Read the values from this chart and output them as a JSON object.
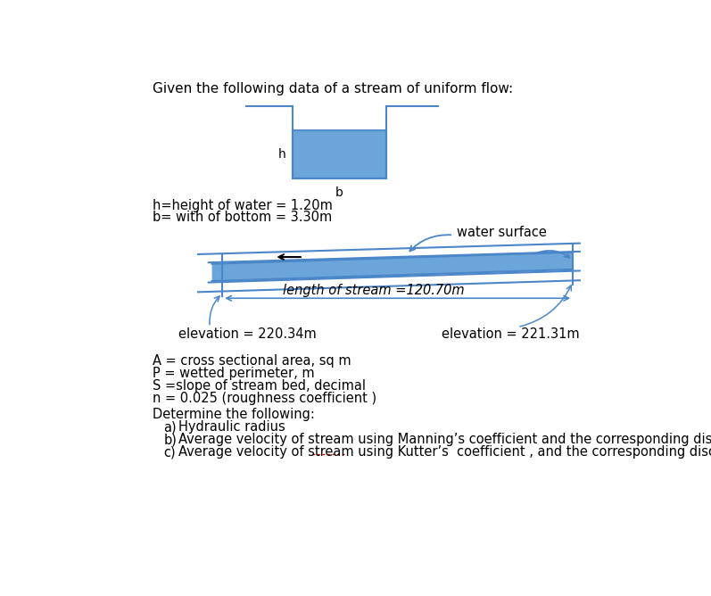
{
  "title": "Given the following data of a stream of uniform flow:",
  "title_fontsize": 11,
  "bg_color": "#ffffff",
  "channel_color": "#5b9bd5",
  "line_color": "#4a86c8",
  "text_color": "#000000",
  "h_label": "h",
  "b_label": "b",
  "h_text": "h=height of water = 1.20m",
  "b_text": "b= with of bottom = 3.30m",
  "water_surface_text": "water surface",
  "length_text": "length of stream =120.70m",
  "elev_left_text": "elevation = 220.34m",
  "elev_right_text": "elevation = 221.31m",
  "A_text": "A = cross sectional area, sq m",
  "P_text": "P = wetted perimeter, m",
  "S_text": "S =slope of stream bed, decimal",
  "n_text": "n = 0.025 (roughness coefficient )",
  "determine_text": "Determine the following:",
  "a_text": "Hydraulic radius",
  "b_item_text": "Average velocity of stream using Manning’s coefficient and the corresponding discharge",
  "c_text": "Average velocity of stream using Kutter’s  coefficient , and the corresponding discharge",
  "font_main": 10.5,
  "font_label": 10,
  "kutter_underline_color": "#cc0000"
}
